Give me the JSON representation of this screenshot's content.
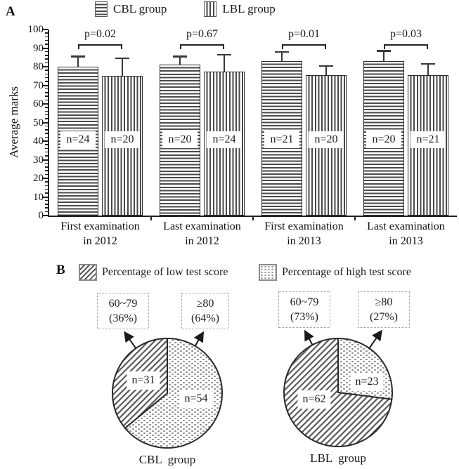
{
  "figure": {
    "panel_a_label": "A",
    "panel_b_label": "B"
  },
  "colors": {
    "ink": "#222222",
    "bar_stripe": "#4a4a4a",
    "hatch_line": "#5a5a5a",
    "dot_fill": "#8a8a8a",
    "callout_border": "#9a9a9a",
    "background": "#ffffff"
  },
  "chart_data": [
    {
      "type": "bar",
      "panel": "A",
      "title": "",
      "xlabel": "",
      "ylabel": "Average marks",
      "ylim": [
        0,
        100
      ],
      "ytick_major_step": 10,
      "ytick_minor_step": 2,
      "grid": false,
      "legend_position": "top",
      "categories": [
        "First examination\nin 2012",
        "Last examination\nin 2012",
        "First examination\nin 2013",
        "Last examination\nin 2013"
      ],
      "series": [
        {
          "name": "CBL group",
          "pattern": "horizontal-stripes",
          "values": [
            80,
            81,
            83,
            83
          ],
          "errors": [
            5,
            4,
            4.5,
            5
          ],
          "n_labels": [
            "n=24",
            "n=20",
            "n=21",
            "n=20"
          ]
        },
        {
          "name": "LBL group",
          "pattern": "vertical-stripes",
          "values": [
            75,
            77.5,
            75.5,
            75.5
          ],
          "errors": [
            9,
            8.5,
            4.5,
            5.5
          ],
          "n_labels": [
            "n=20",
            "n=24",
            "n=20",
            "n=21"
          ]
        }
      ],
      "p_values": [
        "p=0.02",
        "p=0.67",
        "p=0.01",
        "p=0.03"
      ]
    },
    {
      "type": "pie",
      "panel": "B",
      "legend": [
        {
          "label": "Percentage of low test score",
          "pattern": "diagonal-hatch"
        },
        {
          "label": "Percentage of high test score",
          "pattern": "dots"
        }
      ],
      "pies": [
        {
          "label": "CBL  group",
          "slices": [
            {
              "name": "low test score",
              "range": "60~79",
              "percent": 36,
              "percent_label": "(36%)",
              "n_label": "n=31",
              "pattern": "diagonal-hatch"
            },
            {
              "name": "high test score",
              "range": "≥80",
              "percent": 64,
              "percent_label": "(64%)",
              "n_label": "n=54",
              "pattern": "dots"
            }
          ]
        },
        {
          "label": "LBL  group",
          "slices": [
            {
              "name": "low test score",
              "range": "60~79",
              "percent": 73,
              "percent_label": "(73%)",
              "n_label": "n=62",
              "pattern": "diagonal-hatch"
            },
            {
              "name": "high test score",
              "range": "≥80",
              "percent": 27,
              "percent_label": "(27%)",
              "n_label": "n=23",
              "pattern": "dots"
            }
          ]
        }
      ]
    }
  ]
}
